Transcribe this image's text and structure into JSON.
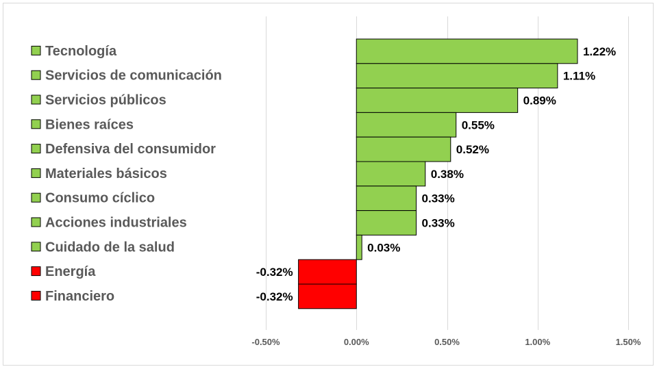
{
  "chart_data": {
    "type": "bar",
    "orientation": "horizontal",
    "categories": [
      "Tecnología",
      "Servicios de comunicación",
      "Servicios públicos",
      "Bienes raíces",
      "Defensiva del consumidor",
      "Materiales básicos",
      "Consumo cíclico",
      "Acciones industriales",
      "Cuidado de la salud",
      "Energía",
      "Financiero"
    ],
    "values": [
      1.22,
      1.11,
      0.89,
      0.55,
      0.52,
      0.38,
      0.33,
      0.33,
      0.03,
      -0.32,
      -0.32
    ],
    "value_labels": [
      "1.22%",
      "1.11%",
      "0.89%",
      "0.55%",
      "0.52%",
      "0.38%",
      "0.33%",
      "0.33%",
      "0.03%",
      "-0.32%",
      "-0.32%"
    ],
    "unit": "%",
    "xlim": [
      -0.5,
      1.5
    ],
    "x_ticks": [
      -0.5,
      0,
      0.5,
      1.0,
      1.5
    ],
    "x_tick_labels": [
      "-0.50%",
      "0.00%",
      "0.50%",
      "1.00%",
      "1.50%"
    ],
    "grid": "vertical",
    "legend": "left",
    "title": "",
    "xlabel": "",
    "ylabel": "",
    "colors": {
      "positive": "#92d050",
      "negative": "#ff0000",
      "grid": "#d9d9d9",
      "category_text": "#595959",
      "value_text": "#000000"
    }
  }
}
